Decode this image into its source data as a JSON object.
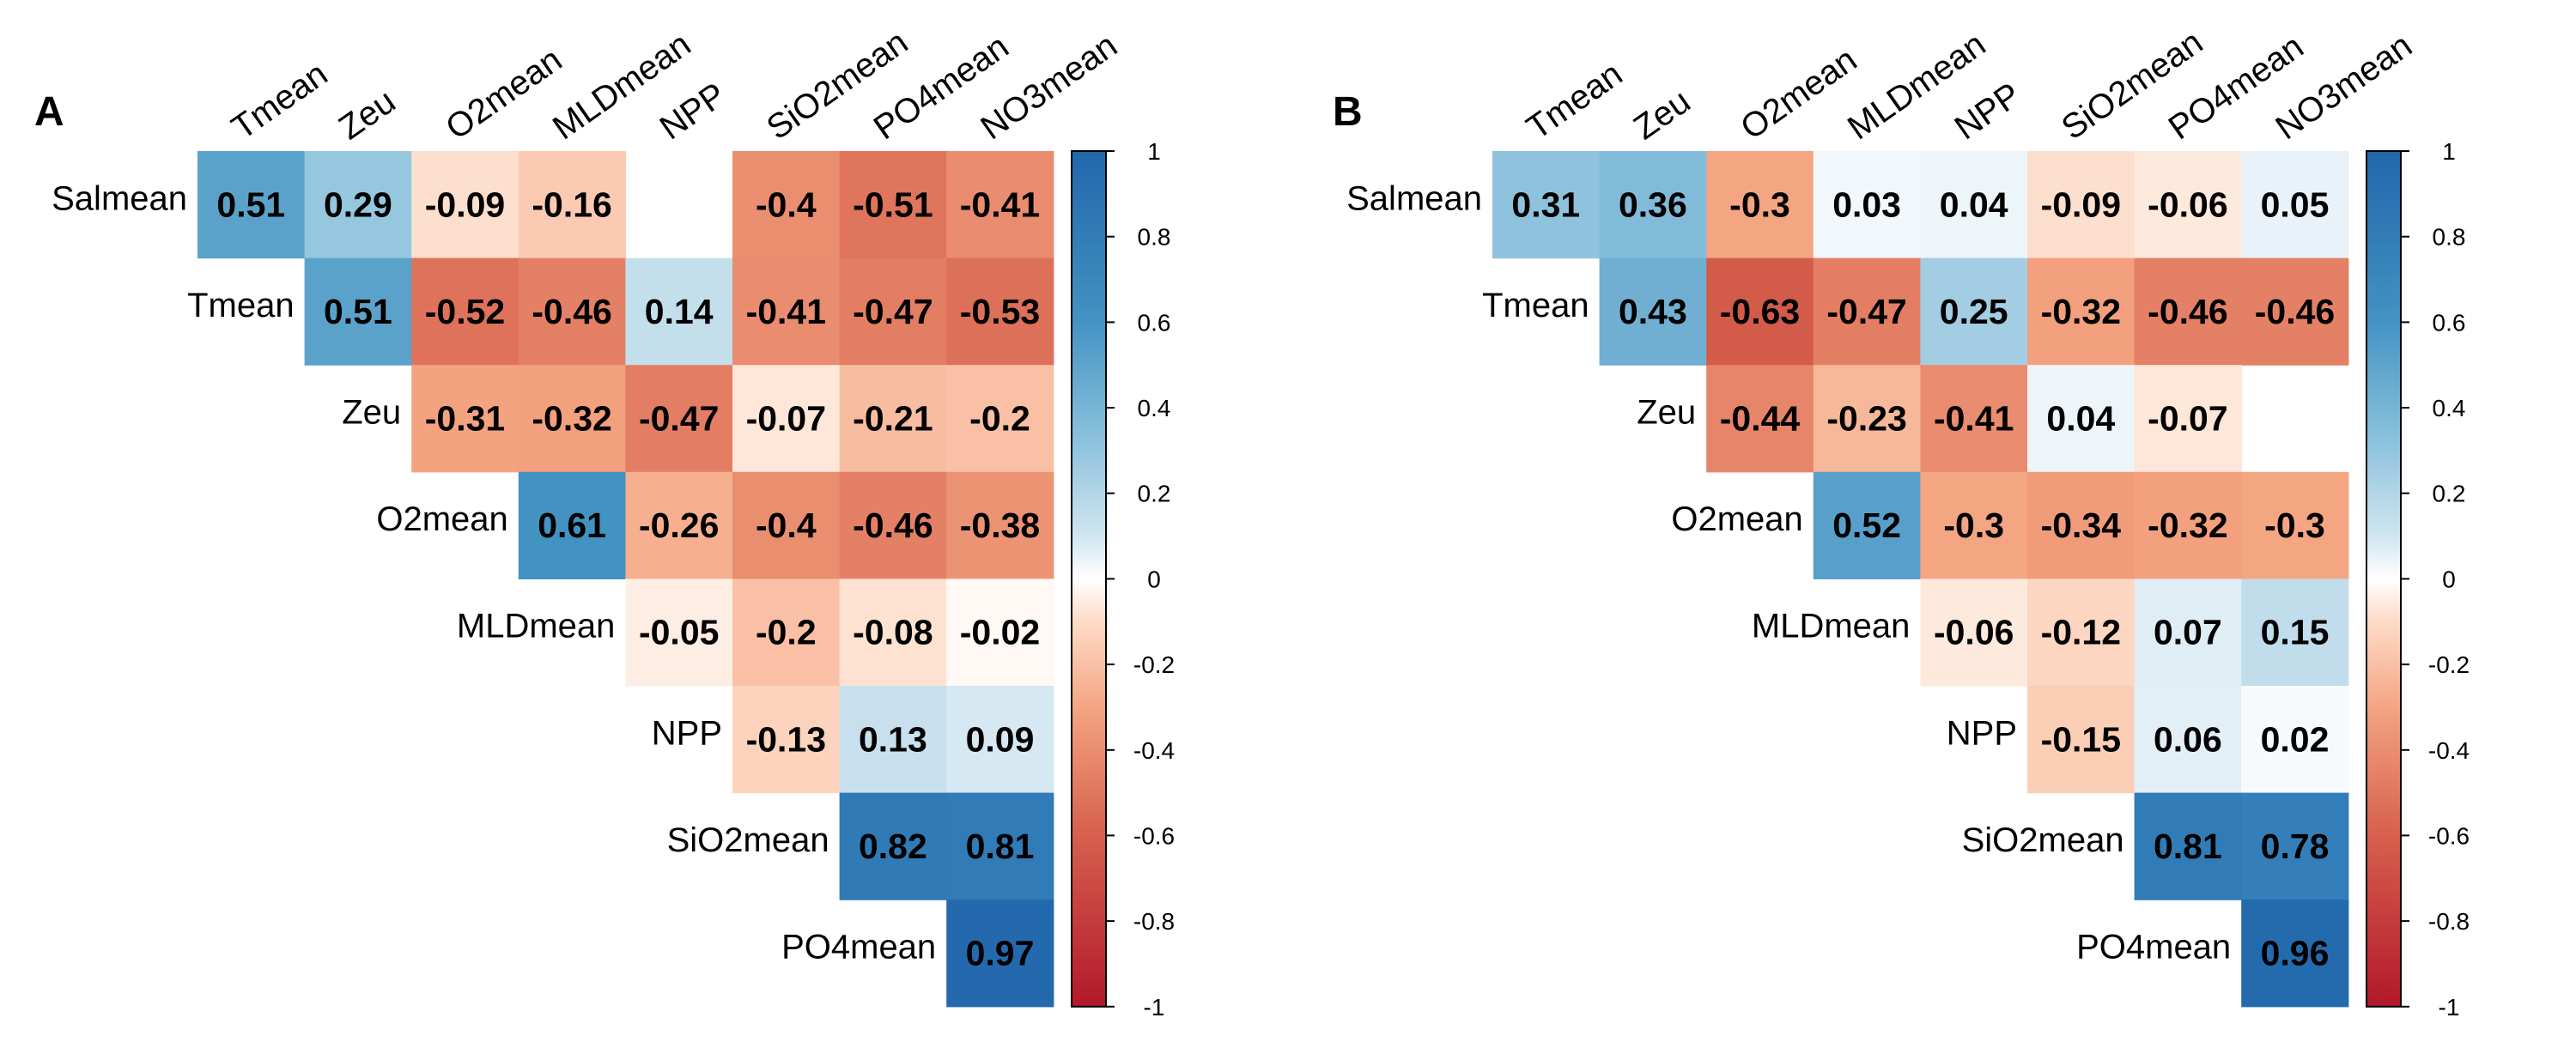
{
  "chart_data": [
    {
      "type": "heatmap",
      "panel": "A",
      "rows": [
        "Salmean",
        "Tmean",
        "Zeu",
        "O2mean",
        "MLDmean",
        "NPP",
        "SiO2mean",
        "PO4mean"
      ],
      "columns": [
        "Tmean",
        "Zeu",
        "O2mean",
        "MLDmean",
        "NPP",
        "SiO2mean",
        "PO4mean",
        "NO3mean"
      ],
      "values": [
        [
          0.51,
          0.29,
          -0.09,
          -0.16,
          null,
          -0.4,
          -0.51,
          -0.41
        ],
        [
          null,
          0.51,
          -0.52,
          -0.46,
          0.14,
          -0.41,
          -0.47,
          -0.53
        ],
        [
          null,
          null,
          -0.31,
          -0.32,
          -0.47,
          -0.07,
          -0.21,
          -0.2
        ],
        [
          null,
          null,
          null,
          0.61,
          -0.26,
          -0.4,
          -0.46,
          -0.38
        ],
        [
          null,
          null,
          null,
          null,
          -0.05,
          -0.2,
          -0.08,
          -0.02
        ],
        [
          null,
          null,
          null,
          null,
          null,
          -0.13,
          0.13,
          0.09
        ],
        [
          null,
          null,
          null,
          null,
          null,
          null,
          0.82,
          0.81
        ],
        [
          null,
          null,
          null,
          null,
          null,
          null,
          null,
          0.97
        ]
      ],
      "colorbar": {
        "ticks": [
          "1",
          "0.8",
          "0.6",
          "0.4",
          "0.2",
          "0",
          "-0.2",
          "-0.4",
          "-0.6",
          "-0.8",
          "-1"
        ],
        "range": [
          -1,
          1
        ],
        "colors": {
          "negative": "#B2182B",
          "neutral": "#FFFFFF",
          "positive": "#2166AC"
        }
      }
    },
    {
      "type": "heatmap",
      "panel": "B",
      "rows": [
        "Salmean",
        "Tmean",
        "Zeu",
        "O2mean",
        "MLDmean",
        "NPP",
        "SiO2mean",
        "PO4mean"
      ],
      "columns": [
        "Tmean",
        "Zeu",
        "O2mean",
        "MLDmean",
        "NPP",
        "SiO2mean",
        "PO4mean",
        "NO3mean"
      ],
      "values": [
        [
          0.31,
          0.36,
          -0.3,
          0.03,
          0.04,
          -0.09,
          -0.06,
          0.05
        ],
        [
          null,
          0.43,
          -0.63,
          -0.47,
          0.25,
          -0.32,
          -0.46,
          -0.46
        ],
        [
          null,
          null,
          -0.44,
          -0.23,
          -0.41,
          0.04,
          -0.07,
          null
        ],
        [
          null,
          null,
          null,
          0.52,
          -0.3,
          -0.34,
          -0.32,
          -0.3
        ],
        [
          null,
          null,
          null,
          null,
          -0.06,
          -0.12,
          0.07,
          0.15
        ],
        [
          null,
          null,
          null,
          null,
          null,
          -0.15,
          0.06,
          0.02
        ],
        [
          null,
          null,
          null,
          null,
          null,
          null,
          0.81,
          0.78
        ],
        [
          null,
          null,
          null,
          null,
          null,
          null,
          null,
          0.96
        ]
      ],
      "colorbar": {
        "ticks": [
          "1",
          "0.8",
          "0.6",
          "0.4",
          "0.2",
          "0",
          "-0.2",
          "-0.4",
          "-0.6",
          "-0.8",
          "-1"
        ],
        "range": [
          -1,
          1
        ],
        "colors": {
          "negative": "#B2182B",
          "neutral": "#FFFFFF",
          "positive": "#2166AC"
        }
      }
    }
  ]
}
